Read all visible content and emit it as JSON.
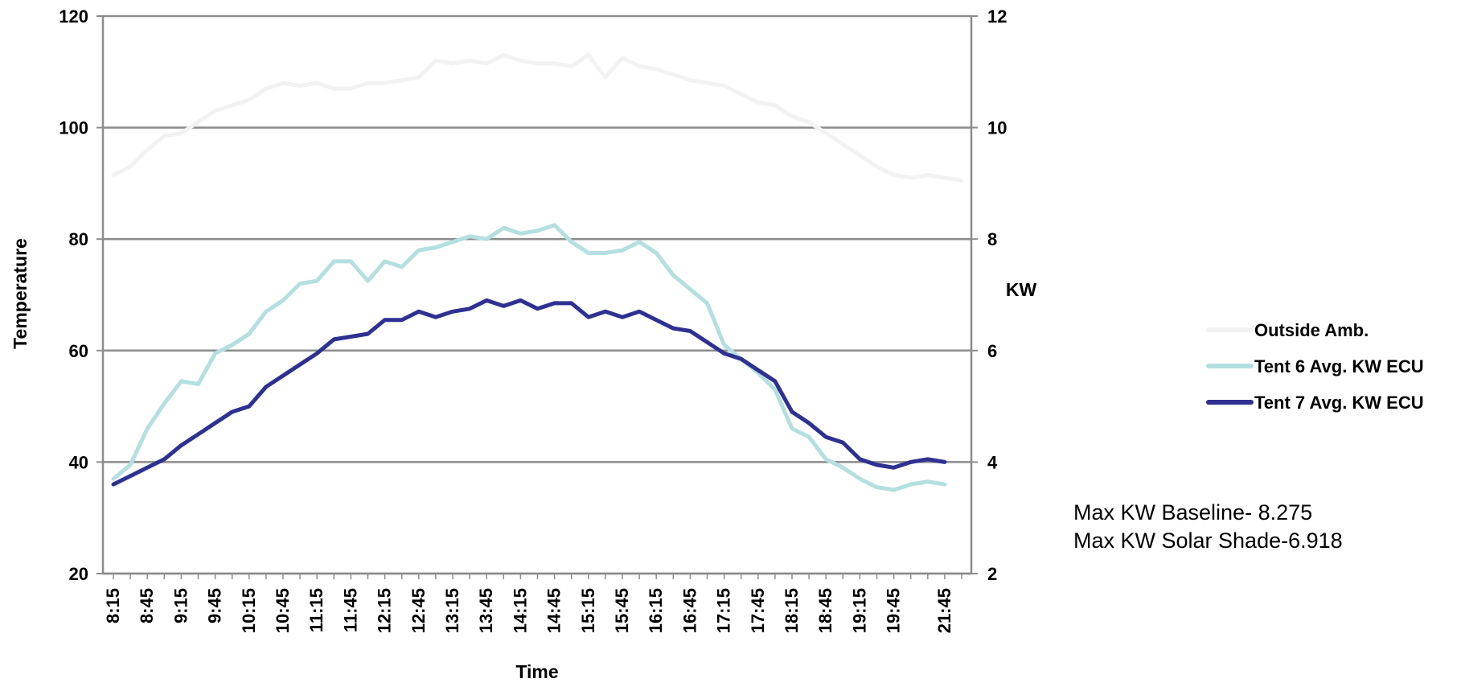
{
  "chart_data": {
    "type": "line",
    "xlabel": "Time",
    "ylabel_left": "Temperature",
    "ylabel_right": "KW",
    "ylim_left": [
      20,
      120
    ],
    "ylim_right": [
      2,
      12
    ],
    "yticks_left": [
      "20",
      "40",
      "60",
      "80",
      "100",
      "120"
    ],
    "yticks_right": [
      "2",
      "4",
      "6",
      "8",
      "10",
      "12"
    ],
    "xtick_labels": [
      "8:15",
      "8:45",
      "9:15",
      "9:45",
      "10:15",
      "10:45",
      "11:15",
      "11:45",
      "12:15",
      "12:45",
      "13:15",
      "13:45",
      "14:15",
      "14:45",
      "15:15",
      "15:45",
      "16:15",
      "16:45",
      "17:15",
      "17:45",
      "18:15",
      "18:45",
      "19:15",
      "19:45",
      "21:45"
    ],
    "grid": "horizontal",
    "legend_position": "right",
    "series": [
      {
        "name": "Outside Amb.",
        "axis": "left",
        "color": "#f2f2f2",
        "values": [
          91.5,
          93,
          96,
          98.5,
          99,
          101,
          103,
          104,
          105,
          107,
          108,
          107.5,
          108,
          107,
          107,
          108,
          108,
          108.5,
          109,
          112,
          111.5,
          112,
          111.5,
          113,
          112,
          111.5,
          111.5,
          111,
          113,
          109,
          112.5,
          111,
          110.5,
          109.5,
          108.5,
          108,
          107.5,
          106,
          104.5,
          104,
          102,
          101,
          99,
          97,
          95,
          93,
          91.5,
          91,
          91.5,
          91,
          90.5
        ]
      },
      {
        "name": "Tent 6 Avg. KW ECU",
        "axis": "right",
        "color": "#b4dfe0",
        "values": [
          3.7,
          3.95,
          4.6,
          5.05,
          5.45,
          5.4,
          5.95,
          6.1,
          6.3,
          6.7,
          6.9,
          7.2,
          7.25,
          7.6,
          7.6,
          7.25,
          7.6,
          7.5,
          7.8,
          7.85,
          7.95,
          8.05,
          8.0,
          8.2,
          8.1,
          8.15,
          8.25,
          7.95,
          7.75,
          7.75,
          7.8,
          7.95,
          7.75,
          7.35,
          7.1,
          6.85,
          6.1,
          5.85,
          5.6,
          5.3,
          4.6,
          4.45,
          4.05,
          3.9,
          3.7,
          3.55,
          3.5,
          3.6,
          3.65,
          3.6
        ]
      },
      {
        "name": "Tent 7 Avg. KW ECU",
        "axis": "right",
        "color": "#2e3192",
        "values": [
          3.6,
          3.75,
          3.9,
          4.05,
          4.3,
          4.5,
          4.7,
          4.9,
          5.0,
          5.35,
          5.55,
          5.75,
          5.95,
          6.2,
          6.25,
          6.3,
          6.55,
          6.55,
          6.7,
          6.6,
          6.7,
          6.75,
          6.9,
          6.8,
          6.9,
          6.75,
          6.85,
          6.85,
          6.6,
          6.7,
          6.6,
          6.7,
          6.55,
          6.4,
          6.35,
          6.15,
          5.95,
          5.85,
          5.65,
          5.45,
          4.9,
          4.7,
          4.45,
          4.35,
          4.05,
          3.95,
          3.9,
          4.0,
          4.05,
          4.0
        ]
      }
    ]
  },
  "notes": {
    "line1": "Max KW Baseline- 8.275",
    "line2": "Max KW Solar Shade-6.918"
  }
}
